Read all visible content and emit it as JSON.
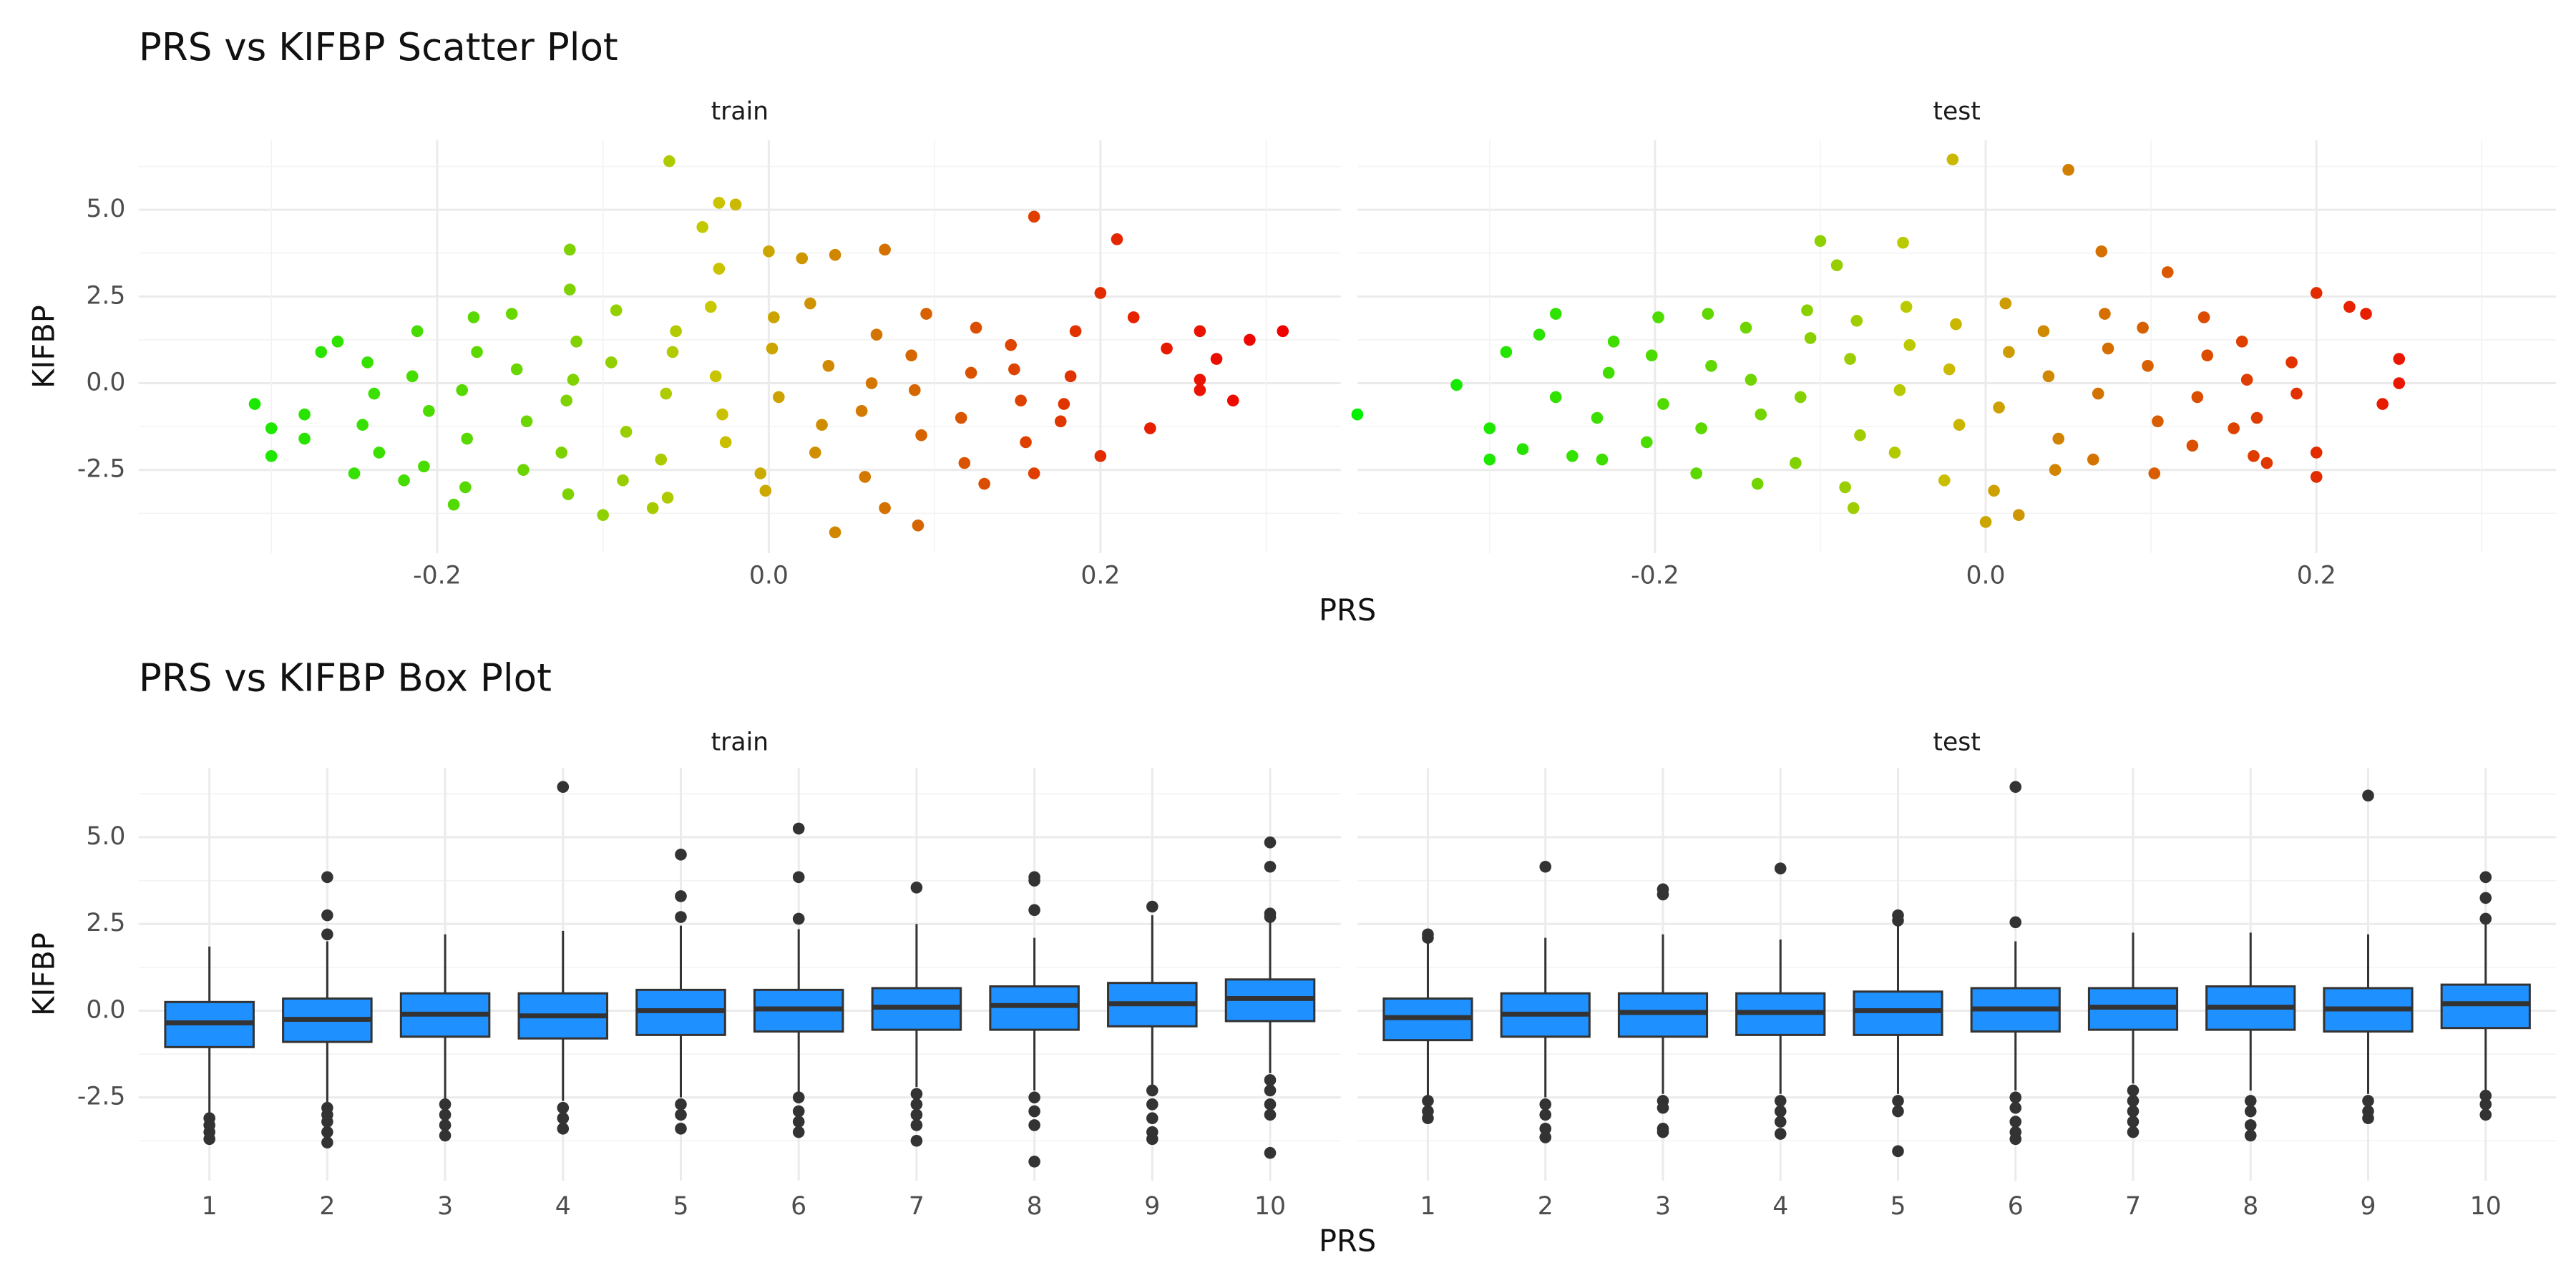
{
  "chart_data": [
    {
      "type": "scatter",
      "title": "PRS vs KIFBP Scatter Plot",
      "x_label": "PRS",
      "y_label": "KIFBP",
      "xlim": [
        -0.38,
        0.345
      ],
      "ylim": [
        -4.9,
        7.0
      ],
      "xticks": [
        -0.2,
        {
          "value": 0,
          "label": "0.0"
        },
        0.2
      ],
      "yticks": [
        -2.5,
        {
          "value": 0,
          "label": "0.0"
        },
        2.5,
        {
          "value": 5,
          "label": "5.0"
        }
      ],
      "xminor": [
        -0.3,
        -0.1,
        0.1,
        0.3
      ],
      "yminor": [
        -3.75,
        -1.25,
        1.25,
        3.75,
        6.25
      ],
      "grid": true,
      "color_scale": {
        "low": "#00ff00",
        "high": "#ff0000"
      },
      "panels": [
        {
          "label": "train",
          "x": [
            -0.31,
            -0.3,
            -0.3,
            -0.28,
            -0.28,
            -0.27,
            -0.26,
            -0.25,
            -0.22,
            -0.19,
            -0.12,
            -0.12,
            -0.06,
            -0.04,
            -0.03,
            -0.02,
            -0.03,
            0.0,
            0.02,
            0.04,
            0.07,
            0.04,
            0.09,
            0.07,
            -0.1,
            -0.07,
            0.16,
            0.21,
            0.2,
            0.22,
            0.24,
            0.26,
            0.26,
            0.27,
            0.28,
            0.29,
            0.31,
            0.26,
            0.23,
            0.2,
            0.16,
            0.13,
            -0.245,
            -0.238,
            -0.242,
            -0.235,
            -0.212,
            -0.205,
            -0.215,
            -0.208,
            -0.182,
            -0.176,
            -0.185,
            -0.178,
            -0.183,
            -0.152,
            -0.146,
            -0.155,
            -0.148,
            -0.122,
            -0.116,
            -0.125,
            -0.118,
            -0.121,
            -0.092,
            -0.086,
            -0.095,
            -0.088,
            -0.062,
            -0.056,
            -0.065,
            -0.058,
            -0.061,
            -0.032,
            -0.026,
            -0.035,
            -0.028,
            0.002,
            0.006,
            -0.005,
            0.003,
            -0.002,
            0.032,
            0.036,
            0.025,
            0.028,
            0.062,
            0.056,
            0.065,
            0.058,
            0.092,
            0.086,
            0.095,
            0.088,
            0.122,
            0.116,
            0.125,
            0.118,
            0.152,
            0.146,
            0.155,
            0.148,
            0.182,
            0.176,
            0.185,
            0.178
          ],
          "y": [
            -0.6,
            -1.3,
            -2.1,
            -0.9,
            -1.6,
            0.9,
            1.2,
            -2.6,
            -2.8,
            -3.5,
            3.85,
            2.7,
            6.4,
            4.5,
            5.2,
            5.15,
            3.3,
            3.8,
            3.6,
            3.7,
            3.85,
            -4.3,
            -4.1,
            -3.6,
            -3.8,
            -3.6,
            4.8,
            4.15,
            2.6,
            1.9,
            1.0,
            1.5,
            0.1,
            0.7,
            -0.5,
            1.25,
            1.5,
            -0.2,
            -1.3,
            -2.1,
            -2.6,
            -2.9,
            -1.2,
            -0.3,
            0.6,
            -2.0,
            1.5,
            -0.8,
            0.2,
            -2.4,
            -1.6,
            0.9,
            -0.2,
            1.9,
            -3.0,
            0.4,
            -1.1,
            2.0,
            -2.5,
            -0.5,
            1.2,
            -2.0,
            0.1,
            -3.2,
            2.1,
            -1.4,
            0.6,
            -2.8,
            -0.3,
            1.5,
            -2.2,
            0.9,
            -3.3,
            0.2,
            -1.7,
            2.2,
            -0.9,
            1.0,
            -0.4,
            -2.6,
            1.9,
            -3.1,
            -1.2,
            0.5,
            2.3,
            -2.0,
            0.0,
            -0.8,
            1.4,
            -2.7,
            -1.5,
            0.8,
            2.0,
            -0.2,
            0.3,
            -1.0,
            1.6,
            -2.3,
            -0.5,
            1.1,
            -1.7,
            0.4,
            0.2,
            -1.1,
            1.5,
            -0.6
          ]
        },
        {
          "label": "test",
          "x": [
            -0.38,
            -0.32,
            -0.3,
            -0.3,
            -0.29,
            -0.28,
            -0.27,
            -0.26,
            -0.26,
            -0.25,
            -0.1,
            -0.09,
            -0.05,
            -0.02,
            0.05,
            0.07,
            0.11,
            0.2,
            0.22,
            0.23,
            0.25,
            0.25,
            0.24,
            0.2,
            0.2,
            0.0,
            0.02,
            -0.08,
            0.15,
            0.17,
            -0.235,
            -0.228,
            -0.232,
            -0.225,
            -0.202,
            -0.195,
            -0.205,
            -0.198,
            -0.172,
            -0.166,
            -0.175,
            -0.168,
            -0.142,
            -0.136,
            -0.145,
            -0.138,
            -0.112,
            -0.106,
            -0.115,
            -0.108,
            -0.082,
            -0.076,
            -0.085,
            -0.078,
            -0.052,
            -0.046,
            -0.055,
            -0.048,
            -0.022,
            -0.016,
            -0.025,
            -0.018,
            0.008,
            0.014,
            0.005,
            0.012,
            0.038,
            0.044,
            0.035,
            0.042,
            0.068,
            0.074,
            0.065,
            0.072,
            0.098,
            0.104,
            0.095,
            0.102,
            0.128,
            0.134,
            0.125,
            0.132,
            0.158,
            0.164,
            0.155,
            0.162,
            0.188,
            0.185
          ],
          "y": [
            -0.9,
            -0.05,
            -1.3,
            -2.2,
            0.9,
            -1.9,
            1.4,
            2.0,
            -0.4,
            -2.1,
            4.1,
            3.4,
            4.05,
            6.45,
            6.15,
            3.8,
            3.2,
            2.6,
            2.2,
            2.0,
            0.7,
            0.0,
            -0.6,
            -2.0,
            -2.7,
            -4.0,
            -3.8,
            -3.6,
            -1.3,
            -2.3,
            -1.0,
            0.3,
            -2.2,
            1.2,
            0.8,
            -0.6,
            -1.7,
            1.9,
            -1.3,
            0.5,
            -2.6,
            2.0,
            0.1,
            -0.9,
            1.6,
            -2.9,
            -0.4,
            1.3,
            -2.3,
            2.1,
            0.7,
            -1.5,
            -3.0,
            1.8,
            -0.2,
            1.1,
            -2.0,
            2.2,
            0.4,
            -1.2,
            -2.8,
            1.7,
            -0.7,
            0.9,
            -3.1,
            2.3,
            0.2,
            -1.6,
            1.5,
            -2.5,
            -0.3,
            1.0,
            -2.2,
            2.0,
            0.5,
            -1.1,
            1.6,
            -2.6,
            -0.4,
            0.8,
            -1.8,
            1.9,
            0.1,
            -1.0,
            1.2,
            -2.1,
            -0.3,
            0.6
          ]
        }
      ]
    },
    {
      "type": "box",
      "title": "PRS vs KIFBP Box Plot",
      "x_label": "PRS",
      "y_label": "KIFBP",
      "categories": [
        "1",
        "2",
        "3",
        "4",
        "5",
        "6",
        "7",
        "8",
        "9",
        "10"
      ],
      "ylim": [
        -4.9,
        7.0
      ],
      "yticks": [
        -2.5,
        {
          "value": 0,
          "label": "0.0"
        },
        2.5,
        {
          "value": 5,
          "label": "5.0"
        }
      ],
      "yminor": [
        -3.75,
        -1.25,
        1.25,
        3.75,
        6.25
      ],
      "grid": true,
      "color": "#1e90ff",
      "panels": [
        {
          "label": "train",
          "boxes": [
            {
              "whisker_low": -3.0,
              "q1": -1.05,
              "median": -0.35,
              "q3": 0.25,
              "whisker_high": 1.85,
              "outliers": [
                -3.1,
                -3.3,
                -3.5,
                -3.7
              ]
            },
            {
              "whisker_low": -2.7,
              "q1": -0.9,
              "median": -0.25,
              "q3": 0.35,
              "whisker_high": 2.0,
              "outliers": [
                2.2,
                2.75,
                3.85,
                -2.8,
                -3.0,
                -3.2,
                -3.5,
                -3.8
              ]
            },
            {
              "whisker_low": -2.6,
              "q1": -0.75,
              "median": -0.1,
              "q3": 0.5,
              "whisker_high": 2.2,
              "outliers": [
                -2.7,
                -3.0,
                -3.3,
                -3.6
              ]
            },
            {
              "whisker_low": -2.6,
              "q1": -0.8,
              "median": -0.15,
              "q3": 0.5,
              "whisker_high": 2.3,
              "outliers": [
                6.45,
                -2.8,
                -3.1,
                -3.4
              ]
            },
            {
              "whisker_low": -2.5,
              "q1": -0.7,
              "median": 0.0,
              "q3": 0.6,
              "whisker_high": 2.45,
              "outliers": [
                2.7,
                3.3,
                4.5,
                -2.7,
                -3.0,
                -3.4
              ]
            },
            {
              "whisker_low": -2.4,
              "q1": -0.6,
              "median": 0.05,
              "q3": 0.6,
              "whisker_high": 2.35,
              "outliers": [
                2.65,
                3.85,
                5.25,
                -2.5,
                -2.9,
                -3.2,
                -3.5
              ]
            },
            {
              "whisker_low": -2.2,
              "q1": -0.55,
              "median": 0.1,
              "q3": 0.65,
              "whisker_high": 2.5,
              "outliers": [
                3.55,
                -2.4,
                -2.7,
                -3.0,
                -3.3,
                -3.75
              ]
            },
            {
              "whisker_low": -2.3,
              "q1": -0.55,
              "median": 0.15,
              "q3": 0.7,
              "whisker_high": 2.1,
              "outliers": [
                2.9,
                3.75,
                3.85,
                -2.5,
                -2.9,
                -3.3,
                -4.35
              ]
            },
            {
              "whisker_low": -2.2,
              "q1": -0.45,
              "median": 0.2,
              "q3": 0.8,
              "whisker_high": 2.75,
              "outliers": [
                3.0,
                -2.3,
                -2.7,
                -3.1,
                -3.5,
                -3.7
              ]
            },
            {
              "whisker_low": -1.8,
              "q1": -0.3,
              "median": 0.35,
              "q3": 0.9,
              "whisker_high": 2.55,
              "outliers": [
                2.7,
                2.8,
                4.15,
                4.85,
                -2.0,
                -2.3,
                -2.7,
                -3.0,
                -4.1
              ]
            }
          ]
        },
        {
          "label": "test",
          "boxes": [
            {
              "whisker_low": -2.5,
              "q1": -0.85,
              "median": -0.2,
              "q3": 0.35,
              "whisker_high": 2.05,
              "outliers": [
                2.1,
                2.2,
                -2.6,
                -2.9,
                -3.1
              ]
            },
            {
              "whisker_low": -2.5,
              "q1": -0.75,
              "median": -0.1,
              "q3": 0.5,
              "whisker_high": 2.1,
              "outliers": [
                4.15,
                -2.7,
                -3.0,
                -3.4,
                -3.65
              ]
            },
            {
              "whisker_low": -2.4,
              "q1": -0.75,
              "median": -0.05,
              "q3": 0.5,
              "whisker_high": 2.2,
              "outliers": [
                3.35,
                3.5,
                -2.6,
                -2.8,
                -3.4,
                -3.5
              ]
            },
            {
              "whisker_low": -2.4,
              "q1": -0.7,
              "median": -0.05,
              "q3": 0.5,
              "whisker_high": 2.05,
              "outliers": [
                4.1,
                -2.6,
                -2.9,
                -3.2,
                -3.55
              ]
            },
            {
              "whisker_low": -2.4,
              "q1": -0.7,
              "median": 0.0,
              "q3": 0.55,
              "whisker_high": 2.5,
              "outliers": [
                2.6,
                2.75,
                -2.6,
                -2.9,
                -4.05
              ]
            },
            {
              "whisker_low": -2.3,
              "q1": -0.6,
              "median": 0.05,
              "q3": 0.65,
              "whisker_high": 2.0,
              "outliers": [
                2.55,
                6.45,
                -2.5,
                -2.8,
                -3.2,
                -3.5,
                -3.7
              ]
            },
            {
              "whisker_low": -2.1,
              "q1": -0.55,
              "median": 0.1,
              "q3": 0.65,
              "whisker_high": 2.25,
              "outliers": [
                -2.3,
                -2.6,
                -2.9,
                -3.2,
                -3.5
              ]
            },
            {
              "whisker_low": -2.3,
              "q1": -0.55,
              "median": 0.1,
              "q3": 0.7,
              "whisker_high": 2.25,
              "outliers": [
                -2.6,
                -2.9,
                -3.3,
                -3.6
              ]
            },
            {
              "whisker_low": -2.4,
              "q1": -0.6,
              "median": 0.05,
              "q3": 0.65,
              "whisker_high": 2.2,
              "outliers": [
                6.2,
                -2.6,
                -2.9,
                -3.1
              ]
            },
            {
              "whisker_low": -2.3,
              "q1": -0.5,
              "median": 0.2,
              "q3": 0.75,
              "whisker_high": 2.5,
              "outliers": [
                2.65,
                3.25,
                3.85,
                -2.45,
                -2.7,
                -3.0
              ]
            }
          ]
        }
      ]
    }
  ]
}
